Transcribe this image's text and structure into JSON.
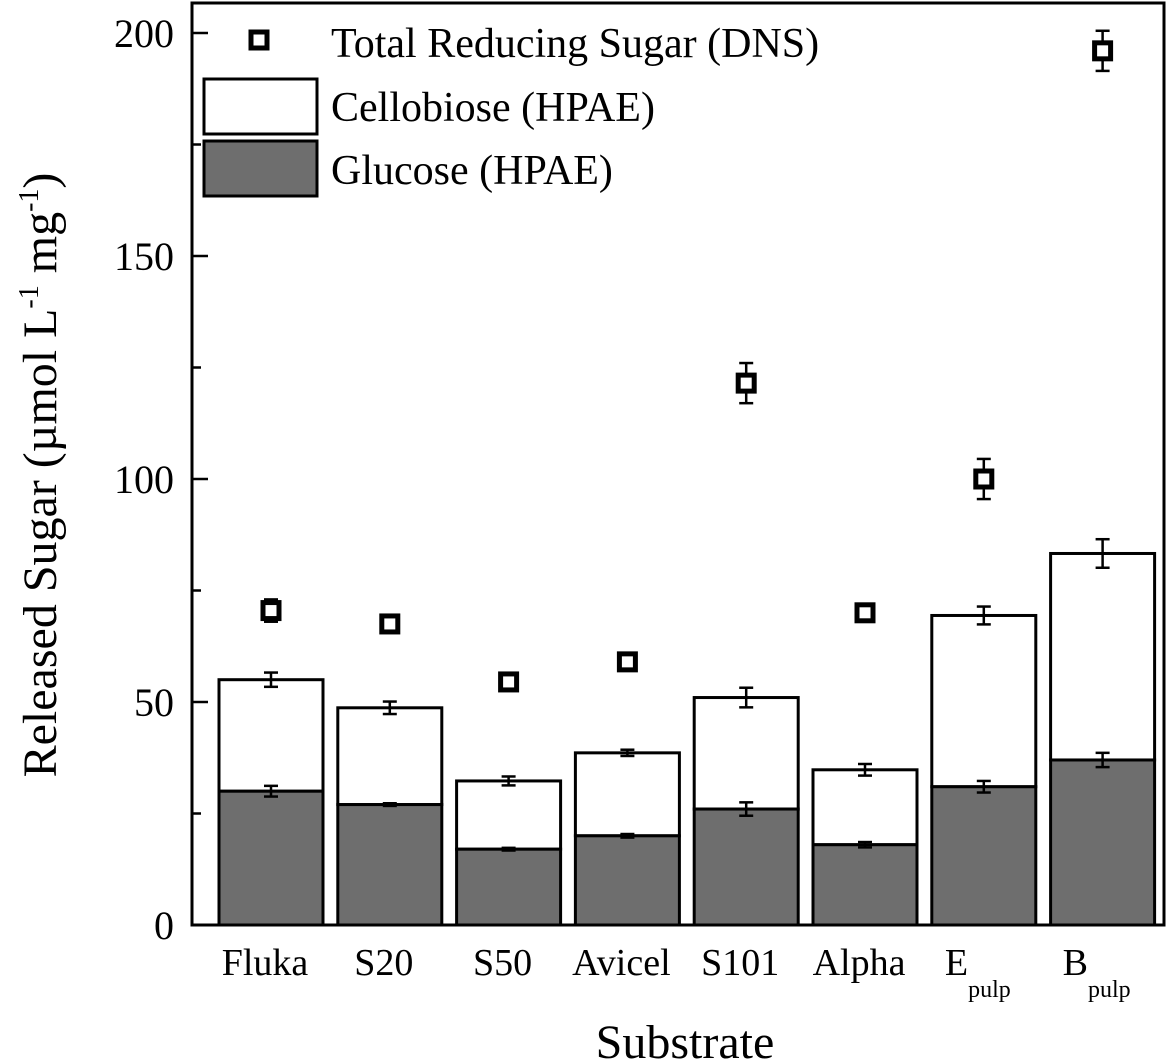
{
  "chart_data": {
    "type": "bar",
    "stacked": true,
    "xlabel": "Substrate",
    "ylabel": "Released Sugar (µmol L⁻¹ mg⁻¹)",
    "ylabel_parts": {
      "main": "Released Sugar (µmol L",
      "sup1": "-1",
      "mid": " mg",
      "sup2": "-1",
      "end": ")"
    },
    "ylim": [
      0,
      200
    ],
    "yticks": [
      0,
      50,
      100,
      150,
      200
    ],
    "categories": [
      {
        "label": "Fluka",
        "sub": ""
      },
      {
        "label": "S20",
        "sub": ""
      },
      {
        "label": "S50",
        "sub": ""
      },
      {
        "label": "Avicel",
        "sub": ""
      },
      {
        "label": "S101",
        "sub": ""
      },
      {
        "label": "Alpha",
        "sub": ""
      },
      {
        "label": "E",
        "sub": "pulp"
      },
      {
        "label": "B",
        "sub": "pulp"
      }
    ],
    "series": [
      {
        "name": "Glucose (HPAE)",
        "kind": "bar",
        "color": "#6e6e6e",
        "values": [
          30,
          27,
          17,
          20,
          26,
          18,
          31,
          37
        ],
        "errors": [
          1.2,
          0.3,
          0.3,
          0.4,
          1.5,
          0.6,
          1.3,
          1.6
        ]
      },
      {
        "name": "Cellobiose (HPAE)",
        "kind": "bar",
        "color": "#ffffff",
        "values": [
          25,
          21.7,
          15.3,
          18.6,
          25,
          16.8,
          38.4,
          46.3
        ],
        "errors": [
          1.6,
          1.4,
          1.0,
          0.7,
          2.2,
          1.3,
          2.0,
          3.2
        ]
      },
      {
        "name": "Total Reducing Sugar (DNS)",
        "kind": "marker",
        "marker": "open-square",
        "values": [
          70.5,
          67.5,
          54.5,
          59,
          121.5,
          70,
          100,
          196
        ],
        "errors": [
          2.5,
          0.8,
          0.8,
          0.8,
          4.5,
          0.8,
          4.5,
          4.5
        ]
      }
    ],
    "legend": {
      "position": "top-left",
      "entries": [
        {
          "label": "Total Reducing Sugar (DNS)",
          "symbol": "open-square"
        },
        {
          "label": "Cellobiose (HPAE)",
          "symbol": "white-box"
        },
        {
          "label": "Glucose (HPAE)",
          "symbol": "gray-box"
        }
      ]
    }
  }
}
